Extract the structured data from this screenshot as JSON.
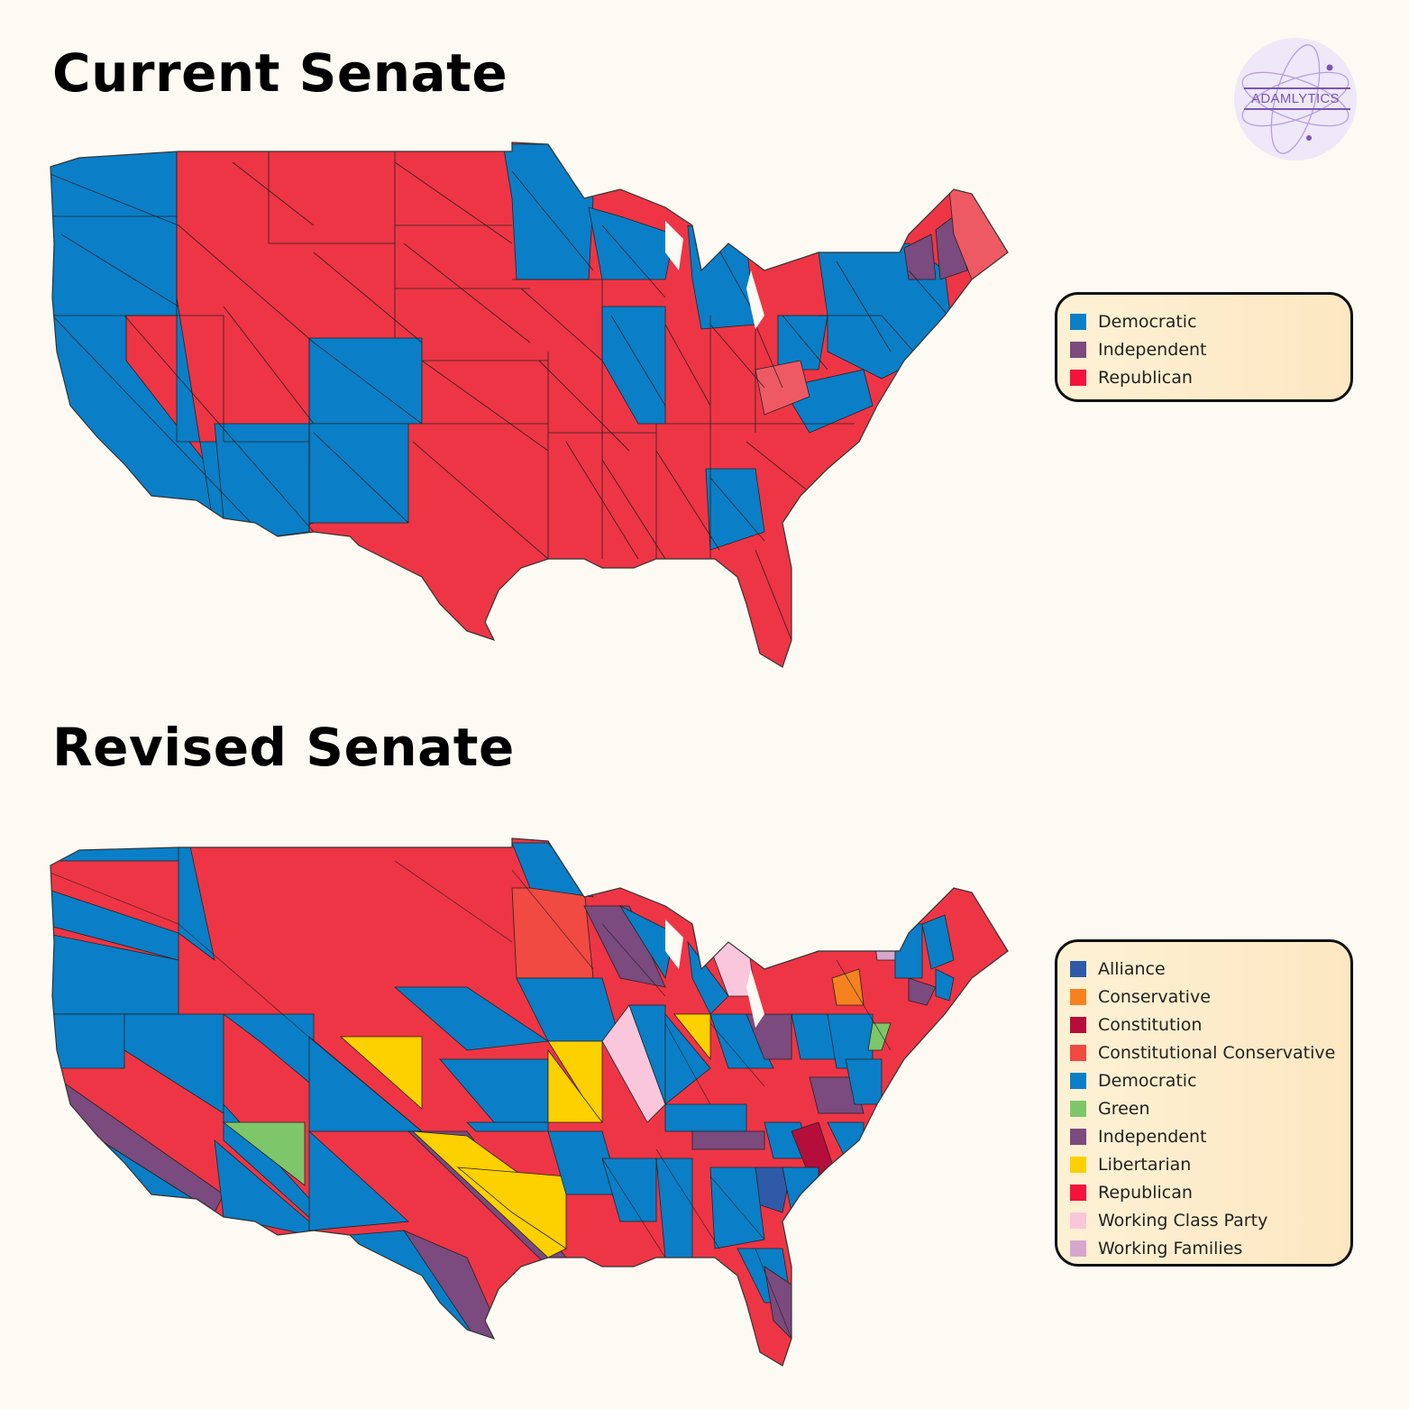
{
  "titles": {
    "current": "Current Senate",
    "revised": "Revised Senate"
  },
  "logo": {
    "text": "ADAMLYTICS",
    "icon": "atom-icon",
    "color": "#7a55b5",
    "background": "#efe8f8"
  },
  "colors": {
    "Alliance": "#2f5aa8",
    "Conservative": "#f5821f",
    "Constitution": "#b50e3a",
    "Constitutional Conservative": "#f04a43",
    "Democratic": "#0a7fc7",
    "Green": "#7ec66a",
    "Independent": "#7b4a7e",
    "Libertarian": "#fdd000",
    "Republican": "#f5123d",
    "Working Class Party": "#f9c6dc",
    "Working Families": "#d7a6cc",
    "map_republican": "#ee3545",
    "map_republican_light": "#ee5a64",
    "border": "#222222"
  },
  "current_legend": [
    {
      "label": "Democratic",
      "color": "#0a7fc7"
    },
    {
      "label": "Independent",
      "color": "#7b4a7e"
    },
    {
      "label": "Republican",
      "color": "#f5123d"
    }
  ],
  "revised_legend": [
    {
      "label": "Alliance",
      "color": "#2f5aa8"
    },
    {
      "label": "Conservative",
      "color": "#f5821f"
    },
    {
      "label": "Constitution",
      "color": "#b50e3a"
    },
    {
      "label": "Constitutional Conservative",
      "color": "#f04a43"
    },
    {
      "label": "Democratic",
      "color": "#0a7fc7"
    },
    {
      "label": "Green",
      "color": "#7ec66a"
    },
    {
      "label": "Independent",
      "color": "#7b4a7e"
    },
    {
      "label": "Libertarian",
      "color": "#fdd000"
    },
    {
      "label": "Republican",
      "color": "#f5123d"
    },
    {
      "label": "Working Class Party",
      "color": "#f9c6dc"
    },
    {
      "label": "Working Families",
      "color": "#d7a6cc"
    }
  ]
}
